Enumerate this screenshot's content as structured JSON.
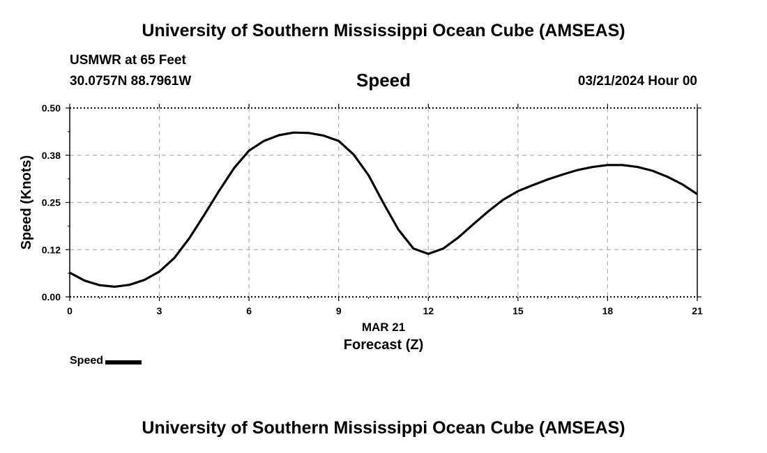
{
  "header": {
    "title": "University of Southern Mississippi Ocean Cube (AMSEAS)",
    "station": "USMWR at 65 Feet",
    "coordinates": "30.0757N  88.7961W",
    "datetime": "03/21/2024 Hour 00"
  },
  "footer": {
    "title": "University of Southern Mississippi Ocean Cube (AMSEAS)"
  },
  "chart_data": {
    "type": "line",
    "title": "Speed",
    "xlabel": "Forecast (Z)",
    "xlabel_date": "MAR 21",
    "ylabel": "Speed (Knots)",
    "xlim": [
      0,
      21
    ],
    "ylim": [
      0,
      0.5
    ],
    "x_ticks": [
      0,
      3,
      6,
      9,
      12,
      15,
      18,
      21
    ],
    "y_ticks": [
      0.0,
      0.125,
      0.25,
      0.375,
      0.5
    ],
    "y_tick_labels": [
      "0.00",
      "0.12",
      "0.25",
      "0.38",
      "0.50"
    ],
    "grid": true,
    "legend": {
      "position": "bottom-left",
      "entries": [
        "Speed"
      ]
    },
    "series": [
      {
        "name": "Speed",
        "color": "#000000",
        "x": [
          0,
          0.5,
          1,
          1.5,
          2,
          2.5,
          3,
          3.5,
          4,
          4.5,
          5,
          5.5,
          6,
          6.5,
          7,
          7.5,
          8,
          8.5,
          9,
          9.5,
          10,
          10.5,
          11,
          11.5,
          12,
          12.5,
          13,
          13.5,
          14,
          14.5,
          15,
          15.5,
          16,
          16.5,
          17,
          17.5,
          18,
          18.5,
          19,
          19.5,
          20,
          20.5,
          21
        ],
        "values": [
          0.064,
          0.043,
          0.031,
          0.027,
          0.032,
          0.045,
          0.067,
          0.103,
          0.155,
          0.217,
          0.281,
          0.341,
          0.387,
          0.413,
          0.428,
          0.435,
          0.434,
          0.427,
          0.413,
          0.377,
          0.322,
          0.248,
          0.178,
          0.128,
          0.114,
          0.128,
          0.157,
          0.192,
          0.226,
          0.257,
          0.28,
          0.296,
          0.311,
          0.324,
          0.336,
          0.344,
          0.349,
          0.349,
          0.344,
          0.334,
          0.318,
          0.298,
          0.272
        ]
      }
    ]
  }
}
